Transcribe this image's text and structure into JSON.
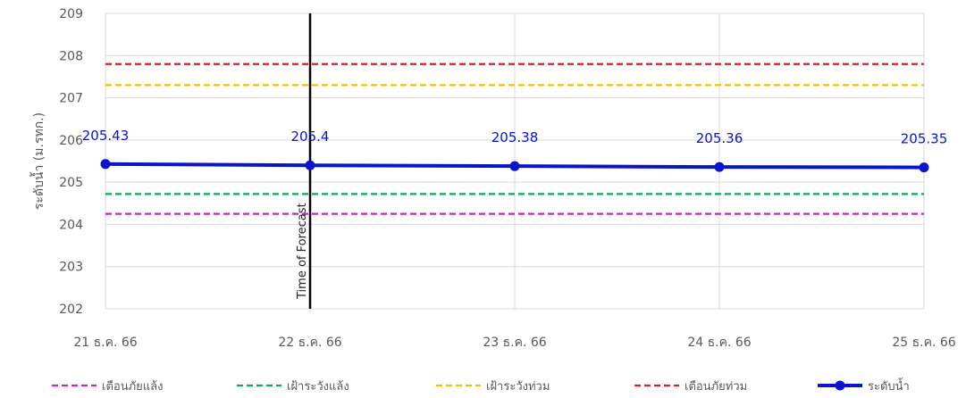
{
  "chart_data": {
    "type": "line",
    "ylabel": "ระดับน้ำ (ม.รทก.)",
    "ylim": [
      202,
      209
    ],
    "yticks": [
      202,
      203,
      204,
      205,
      206,
      207,
      208,
      209
    ],
    "categories": [
      "21 ธ.ค. 66",
      "22 ธ.ค. 66",
      "23 ธ.ค. 66",
      "24 ธ.ค. 66",
      "25 ธ.ค. 66"
    ],
    "grid": true,
    "legend_position": "bottom",
    "forecast_marker": {
      "category": "22 ธ.ค. 66",
      "label": "Time of Forecast",
      "color": "#000000"
    },
    "thresholds": [
      {
        "name": "เตือนภัยแล้ง",
        "value": 204.25,
        "color": "#cc22cc"
      },
      {
        "name": "เฝ้าระวังแล้ง",
        "value": 204.72,
        "color": "#00b050"
      },
      {
        "name": "เฝ้าระวังท่วม",
        "value": 207.3,
        "color": "#f5c000"
      },
      {
        "name": "เตือนภัยท่วม",
        "value": 207.8,
        "color": "#e02020"
      }
    ],
    "series": [
      {
        "name": "ระดับน้ำ",
        "color": "#0a14cc",
        "values": [
          205.43,
          205.4,
          205.38,
          205.36,
          205.35
        ],
        "labels": [
          "205.43",
          "205.4",
          "205.38",
          "205.36",
          "205.35"
        ]
      }
    ]
  }
}
